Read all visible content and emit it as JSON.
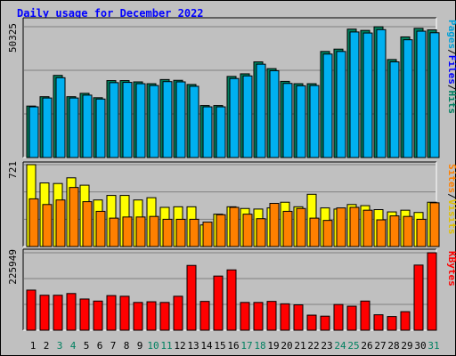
{
  "chart_data": {
    "type": "bar",
    "title": "Daily usage for December 2022",
    "categories": [
      "1",
      "2",
      "3",
      "4",
      "5",
      "6",
      "7",
      "8",
      "9",
      "10",
      "11",
      "12",
      "13",
      "14",
      "15",
      "16",
      "17",
      "18",
      "19",
      "20",
      "21",
      "22",
      "23",
      "24",
      "25",
      "26",
      "27",
      "28",
      "29",
      "30",
      "31"
    ],
    "weekend_days": [
      3,
      4,
      10,
      11,
      17,
      18,
      24,
      25,
      31
    ],
    "panels": [
      {
        "name": "hits_files",
        "ymax_label": "50325",
        "ymax": 50325,
        "legend": [
          {
            "text": "Pages",
            "color": "#00a0d8"
          },
          {
            "text": "/",
            "color": "#000000"
          },
          {
            "text": "Files",
            "color": "#0000ff"
          },
          {
            "text": "/",
            "color": "#000000"
          },
          {
            "text": "Hits",
            "color": "#008060"
          }
        ],
        "series": [
          {
            "name": "Hits",
            "color": "#00805e",
            "values": [
              19800,
              23400,
              31600,
              23400,
              24700,
              23000,
              29600,
              29600,
              29100,
              28400,
              30000,
              29700,
              28100,
              20000,
              20000,
              31200,
              32200,
              36800,
              34200,
              29300,
              28400,
              28400,
              40800,
              41700,
              49400,
              48900,
              50300,
              37700,
              46400,
              49700,
              49100
            ]
          },
          {
            "name": "Files",
            "color": "#00b0f0",
            "values": [
              19500,
              22900,
              30700,
              22900,
              24000,
              22500,
              28800,
              28900,
              28400,
              27700,
              29200,
              29100,
              27400,
              19500,
              19500,
              30400,
              31400,
              35900,
              33400,
              28500,
              27600,
              27700,
              39800,
              40800,
              48300,
              47900,
              49200,
              36800,
              45300,
              48600,
              48000
            ]
          }
        ]
      },
      {
        "name": "visits_sites",
        "ymax_label": "721",
        "ymax": 721,
        "legend": [
          {
            "text": "Sites",
            "color": "#ff8000"
          },
          {
            "text": "/",
            "color": "#000000"
          },
          {
            "text": "Visits",
            "color": "#e0c000"
          }
        ],
        "series": [
          {
            "name": "Visits",
            "color": "#ffff00",
            "values": [
              721,
              560,
              555,
              605,
              540,
              410,
              450,
              450,
              410,
              430,
              345,
              350,
              350,
              190,
              285,
              350,
              335,
              330,
              340,
              390,
              350,
              460,
              340,
              330,
              370,
              360,
              325,
              305,
              320,
              300,
              390
            ]
          },
          {
            "name": "Sites",
            "color": "#ff8000",
            "values": [
              420,
              370,
              410,
              520,
              395,
              310,
              250,
              260,
              260,
              265,
              240,
              240,
              240,
              215,
              280,
              345,
              285,
              245,
              380,
              310,
              335,
              250,
              230,
              340,
              345,
              320,
              235,
              270,
              265,
              240,
              385
            ]
          }
        ]
      },
      {
        "name": "kbytes",
        "ymax_label": "225949",
        "ymax": 225949,
        "legend": [
          {
            "text": "KBytes",
            "color": "#ff0000"
          }
        ],
        "series": [
          {
            "name": "KBytes",
            "color": "#ff0000",
            "values": [
              117000,
              102000,
              102000,
              107000,
              91000,
              85000,
              101000,
              99000,
              81000,
              83000,
              81000,
              99000,
              189000,
              84000,
              158000,
              176000,
              81000,
              81000,
              84000,
              77000,
              74000,
              44000,
              41000,
              75000,
              70000,
              85000,
              45000,
              40000,
              54000,
              190000,
              225949
            ]
          }
        ]
      }
    ]
  }
}
